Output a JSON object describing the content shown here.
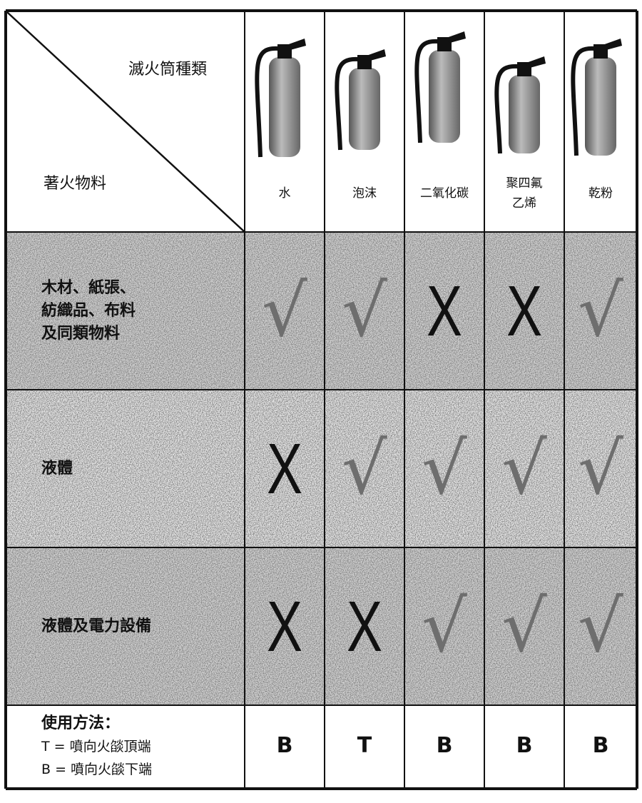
{
  "header": {
    "corner_top": "滅火筒種類",
    "corner_bottom": "著火物料",
    "columns": [
      [
        "水"
      ],
      [
        "泡沫"
      ],
      [
        "二氧化碳"
      ],
      [
        "聚四氟",
        "乙烯"
      ],
      [
        "乾粉"
      ]
    ]
  },
  "rows": [
    {
      "label": [
        "木材、紙張、",
        "紡織品、布料",
        "及同類物料"
      ],
      "cells": [
        "√",
        "√",
        "X",
        "X",
        "√"
      ]
    },
    {
      "label": [
        "液體"
      ],
      "cells": [
        "X",
        "√",
        "√",
        "√",
        "√"
      ]
    },
    {
      "label": [
        "液體及電力設備"
      ],
      "cells": [
        "X",
        "X",
        "√",
        "√",
        "√"
      ]
    }
  ],
  "usage": {
    "label": [
      "使用方法：",
      "T = 噴向火燄頂端",
      "B = 噴向火燄下端"
    ],
    "cells": [
      "B",
      "T",
      "B",
      "B",
      "B"
    ]
  }
}
